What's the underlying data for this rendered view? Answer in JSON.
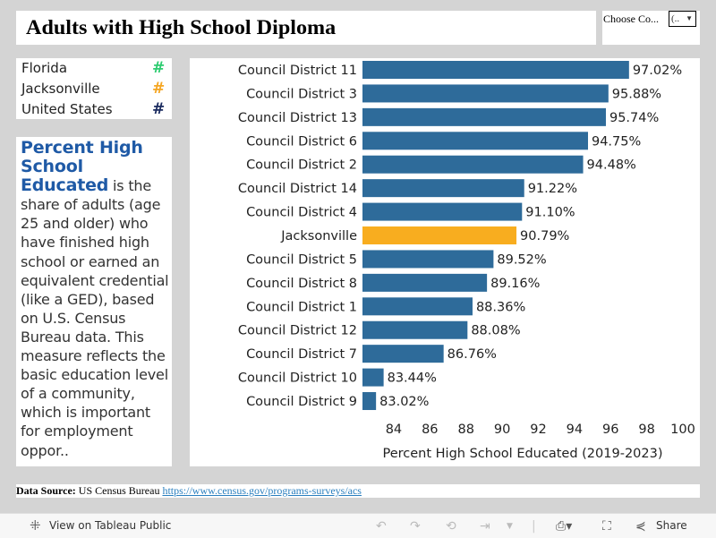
{
  "title": "Adults with High School Diploma",
  "filter": {
    "label": "Choose Co...",
    "value": "(..",
    "arrow": "▼"
  },
  "legend": [
    {
      "label": "Florida",
      "symbol": "#",
      "color": "#2ecc71"
    },
    {
      "label": "Jacksonville",
      "symbol": "#",
      "color": "#f5a623"
    },
    {
      "label": "United States",
      "symbol": "#",
      "color": "#1a2b5f"
    }
  ],
  "description": {
    "heading": "Percent High School Educated",
    "body": " is the share of adults (age 25 and older) who have finished high school or earned an equivalent credential (like a GED), based on U.S. Census Bureau data. This measure reflects the basic education level of a community, which is important for employment oppor.."
  },
  "chart_data": {
    "type": "bar",
    "orientation": "horizontal",
    "categories": [
      "Council District 11",
      "Council District 3",
      "Council District 13",
      "Council District 6",
      "Council District 2",
      "Council District 14",
      "Council District 4",
      "Jacksonville",
      "Council District 5",
      "Council District 8",
      "Council District 1",
      "Council District 12",
      "Council District 7",
      "Council District 10",
      "Council District 9"
    ],
    "values": [
      97.02,
      95.88,
      95.74,
      94.75,
      94.48,
      91.22,
      91.1,
      90.79,
      89.52,
      89.16,
      88.36,
      88.08,
      86.76,
      83.44,
      83.02
    ],
    "labels": [
      "97.02%",
      "95.88%",
      "95.74%",
      "94.75%",
      "94.48%",
      "91.22%",
      "91.10%",
      "90.79%",
      "89.52%",
      "89.16%",
      "88.36%",
      "88.08%",
      "86.76%",
      "83.44%",
      "83.02%"
    ],
    "colors": {
      "default": "#2e6b9a",
      "highlight": "#f8ad1f"
    },
    "highlight": "Jacksonville",
    "xlabel": "Percent High School Educated (2019-2023)",
    "xticks": [
      84,
      86,
      88,
      90,
      92,
      94,
      96,
      98,
      100
    ],
    "xlim": [
      82.27,
      100
    ],
    "grid": false
  },
  "source": {
    "label": "Data Source:",
    "text": "US Census Bureau",
    "link": "https://www.census.gov/programs-surveys/acs"
  },
  "toolbar": {
    "view_label": "View on Tableau Public",
    "share_label": "Share"
  }
}
